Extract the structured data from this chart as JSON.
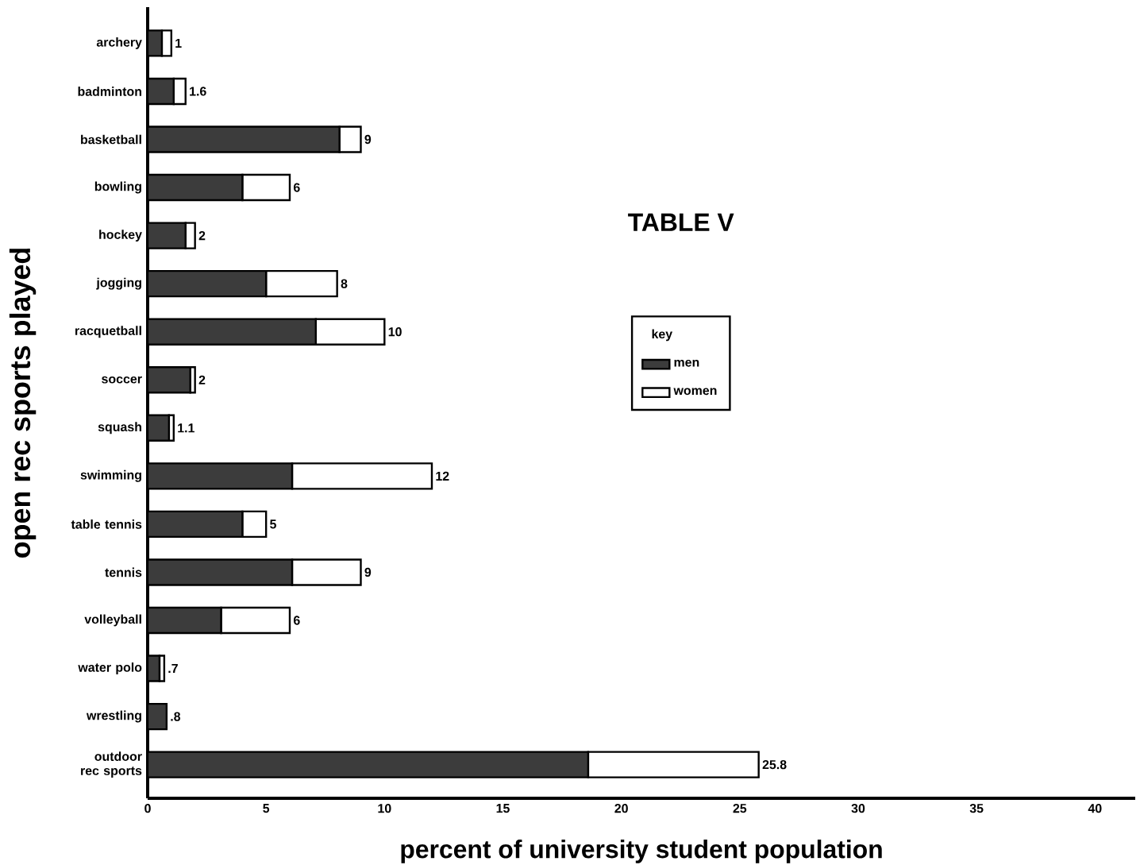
{
  "chart_data": {
    "type": "bar",
    "orientation": "horizontal",
    "stacked": true,
    "title": "TABLE V",
    "xlabel": "percent of university student population",
    "ylabel": "open rec sports played",
    "legend_title": "key",
    "legend": "center",
    "categories": [
      "archery",
      "badminton",
      "basketball",
      "bowling",
      "hockey",
      "jogging",
      "racquetball",
      "soccer",
      "squash",
      "swimming",
      "table tennis",
      "tennis",
      "volleyball",
      "water polo",
      "wrestling",
      "outdoor rec sports"
    ],
    "series": [
      {
        "name": "men",
        "color": "#3c3c3c",
        "values": [
          0.6,
          1.1,
          8.1,
          4.0,
          1.6,
          5.0,
          7.1,
          1.8,
          0.9,
          6.1,
          4.0,
          6.1,
          3.1,
          0.5,
          0.8,
          18.6
        ]
      },
      {
        "name": "women",
        "color": "#ffffff",
        "values": [
          0.4,
          0.5,
          0.9,
          2.0,
          0.4,
          3.0,
          2.9,
          0.2,
          0.2,
          5.9,
          1.0,
          2.9,
          2.9,
          0.2,
          0,
          7.2
        ]
      }
    ],
    "totals": [
      "1",
      "1.6",
      "9",
      "6",
      "2",
      "8",
      "10",
      "2",
      "1.1",
      "12",
      "5",
      "9",
      "6",
      ".7",
      ".8",
      "25.8"
    ],
    "xlim": [
      0,
      41.7
    ],
    "xticks": [
      0,
      5,
      10,
      15,
      20,
      25,
      30,
      35,
      40
    ],
    "grid": false
  }
}
